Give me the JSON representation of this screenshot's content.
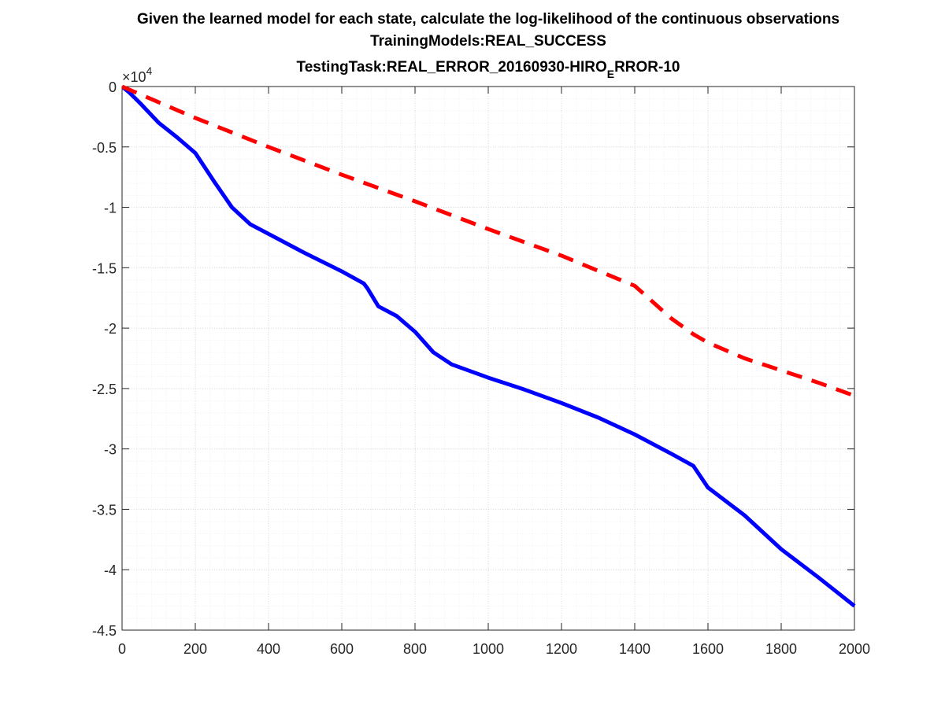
{
  "chart_data": {
    "type": "line",
    "title": [
      "Given the learned model for each state, calculate the log-likelihood of the continuous observations",
      "TrainingModels:REAL_SUCCESS"
    ],
    "title_line3": {
      "before": "TestingTask:REAL_ERROR_20160930-HIRO",
      "subscript": "E",
      "after": "RROR-10"
    },
    "y_exponent": {
      "base": "×10",
      "power": "4"
    },
    "xlim": [
      0,
      2000
    ],
    "ylim": [
      -4.5,
      0
    ],
    "xticks": [
      0,
      200,
      400,
      600,
      800,
      1000,
      1200,
      1400,
      1600,
      1800,
      2000
    ],
    "yticks": [
      0,
      -0.5,
      -1,
      -1.5,
      -2,
      -2.5,
      -3,
      -3.5,
      -4,
      -4.5
    ],
    "grid": true,
    "minor_grid": true,
    "series": [
      {
        "color": "#0000ff",
        "dashed": false,
        "x": [
          0,
          20,
          50,
          100,
          150,
          200,
          250,
          300,
          350,
          400,
          500,
          600,
          660,
          670,
          690,
          700,
          750,
          800,
          850,
          900,
          1000,
          1100,
          1200,
          1300,
          1400,
          1500,
          1560,
          1600,
          1700,
          1800,
          1900,
          2000
        ],
        "values": [
          0,
          -0.05,
          -0.14,
          -0.3,
          -0.42,
          -0.55,
          -0.78,
          -1.0,
          -1.14,
          -1.22,
          -1.38,
          -1.53,
          -1.63,
          -1.67,
          -1.77,
          -1.82,
          -1.9,
          -2.03,
          -2.2,
          -2.3,
          -2.41,
          -2.51,
          -2.62,
          -2.74,
          -2.88,
          -3.04,
          -3.14,
          -3.32,
          -3.55,
          -3.83,
          -4.06,
          -4.3
        ]
      },
      {
        "color": "#ff0000",
        "dashed": true,
        "x": [
          0,
          200,
          400,
          600,
          800,
          1000,
          1200,
          1400,
          1500,
          1560,
          1600,
          1700,
          1800,
          1900,
          2000
        ],
        "values": [
          0,
          -0.26,
          -0.5,
          -0.73,
          -0.95,
          -1.18,
          -1.4,
          -1.65,
          -1.92,
          -2.05,
          -2.12,
          -2.25,
          -2.35,
          -2.45,
          -2.56
        ]
      }
    ]
  }
}
